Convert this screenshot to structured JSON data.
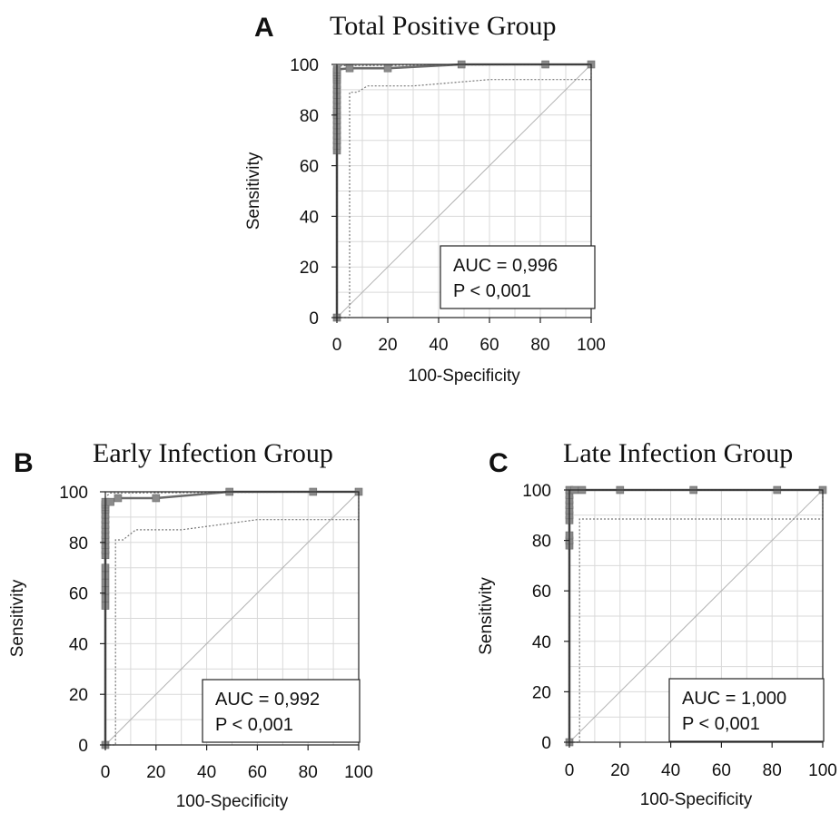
{
  "chart_data": [
    {
      "type": "line",
      "panel_letter": "A",
      "title": "Total Positive Group",
      "xlabel": "100-Specificity",
      "ylabel": "Sensitivity",
      "xlim": [
        0,
        100
      ],
      "ylim": [
        0,
        100
      ],
      "xticks": [
        0,
        20,
        40,
        60,
        80,
        100
      ],
      "yticks": [
        0,
        20,
        40,
        60,
        80,
        100
      ],
      "grid": true,
      "annotation": [
        "AUC = 0,996",
        "P < 0,001"
      ],
      "reference_line": [
        [
          0,
          0
        ],
        [
          100,
          100
        ]
      ],
      "series": [
        {
          "type": "roc",
          "x": [
            0,
            0,
            0,
            0,
            0,
            0,
            0,
            0,
            0,
            0,
            0,
            0,
            0,
            0,
            0,
            0,
            0,
            0,
            0,
            0,
            5,
            20,
            49,
            82,
            100
          ],
          "y": [
            0,
            66,
            68,
            70,
            72,
            74,
            76,
            78,
            80,
            82,
            84,
            86,
            88,
            90,
            92,
            94,
            95,
            96,
            97,
            98,
            98.5,
            98.5,
            100,
            100,
            100
          ]
        },
        {
          "type": "ci_lower",
          "x": [
            0,
            5,
            5,
            8,
            12,
            30,
            60,
            100,
            100
          ],
          "y": [
            0,
            0,
            89,
            89,
            91.5,
            91.5,
            94,
            94,
            100
          ]
        },
        {
          "type": "ci_upper",
          "x": [
            0,
            0,
            2,
            100
          ],
          "y": [
            0,
            99,
            99.5,
            100
          ]
        }
      ]
    },
    {
      "type": "line",
      "panel_letter": "B",
      "title": "Early Infection Group",
      "xlabel": "100-Specificity",
      "ylabel": "Sensitivity",
      "xlim": [
        0,
        100
      ],
      "ylim": [
        0,
        100
      ],
      "xticks": [
        0,
        20,
        40,
        60,
        80,
        100
      ],
      "yticks": [
        0,
        20,
        40,
        60,
        80,
        100
      ],
      "grid": true,
      "annotation": [
        "AUC = 0,992",
        "P < 0,001"
      ],
      "reference_line": [
        [
          0,
          0
        ],
        [
          100,
          100
        ]
      ],
      "series": [
        {
          "type": "roc",
          "x": [
            0,
            0,
            0,
            0,
            0,
            0,
            0,
            0,
            0,
            0,
            0,
            0,
            0,
            0,
            0,
            0,
            0,
            0,
            0,
            0,
            2,
            5,
            20,
            49,
            82,
            100
          ],
          "y": [
            0,
            55,
            58,
            61,
            64,
            67,
            70,
            75,
            77,
            79,
            81,
            83,
            85,
            87,
            89,
            91,
            93,
            94,
            95,
            96,
            96,
            97.5,
            97.5,
            100,
            100,
            100
          ]
        },
        {
          "type": "ci_lower",
          "x": [
            0,
            4,
            4,
            7,
            12,
            30,
            60,
            100,
            100
          ],
          "y": [
            0,
            0,
            81,
            81,
            85,
            85,
            89,
            89,
            100
          ]
        },
        {
          "type": "ci_upper",
          "x": [
            0,
            0,
            2,
            100
          ],
          "y": [
            0,
            98,
            99.5,
            100
          ]
        }
      ]
    },
    {
      "type": "line",
      "panel_letter": "C",
      "title": "Late Infection Group",
      "xlabel": "100-Specificity",
      "ylabel": "Sensitivity",
      "xlim": [
        0,
        100
      ],
      "ylim": [
        0,
        100
      ],
      "xticks": [
        0,
        20,
        40,
        60,
        80,
        100
      ],
      "yticks": [
        0,
        20,
        40,
        60,
        80,
        100
      ],
      "grid": true,
      "annotation": [
        "AUC = 1,000",
        "P < 0,001"
      ],
      "reference_line": [
        [
          0,
          0
        ],
        [
          100,
          100
        ]
      ],
      "series": [
        {
          "type": "roc",
          "x": [
            0,
            0,
            0,
            0,
            0,
            0,
            0,
            0,
            0,
            0,
            0,
            2,
            5,
            20,
            49,
            82,
            100
          ],
          "y": [
            0,
            78,
            80,
            82,
            88,
            90,
            92,
            94,
            96,
            98,
            100,
            100,
            100,
            100,
            100,
            100,
            100
          ]
        },
        {
          "type": "ci_lower",
          "x": [
            0,
            4,
            4,
            100,
            100
          ],
          "y": [
            0,
            0,
            88.5,
            88.5,
            100
          ]
        },
        {
          "type": "ci_upper",
          "x": [
            0,
            0,
            100
          ],
          "y": [
            0,
            100,
            100
          ]
        }
      ]
    }
  ]
}
